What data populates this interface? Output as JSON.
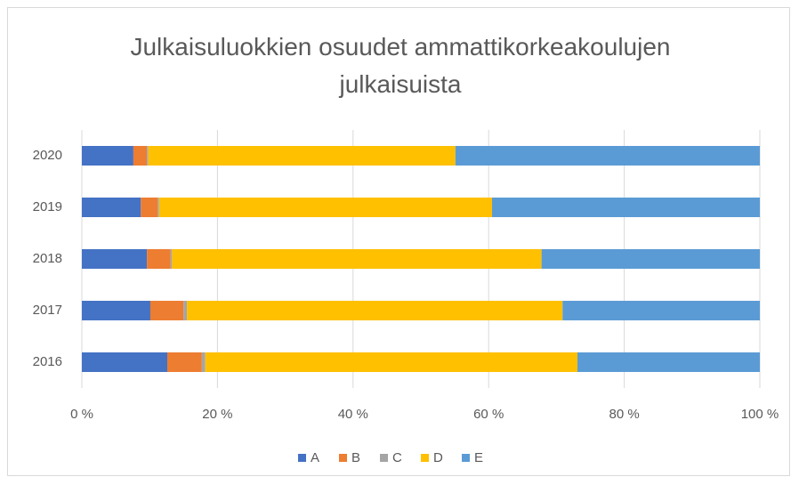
{
  "chart_data": {
    "type": "stacked_bar_horizontal",
    "title": "Julkaisuluokkien osuudet ammattikorkeakoulujen julkaisuista",
    "categories": [
      "2020",
      "2019",
      "2018",
      "2017",
      "2016"
    ],
    "series": [
      {
        "name": "A",
        "color": "#4472c4",
        "values": [
          7.6,
          8.7,
          9.6,
          10.1,
          12.6
        ]
      },
      {
        "name": "B",
        "color": "#ed7d31",
        "values": [
          2.0,
          2.5,
          3.5,
          4.9,
          5.1
        ]
      },
      {
        "name": "C",
        "color": "#a5a5a5",
        "values": [
          0.2,
          0.2,
          0.2,
          0.5,
          0.5
        ]
      },
      {
        "name": "D",
        "color": "#ffc000",
        "values": [
          45.3,
          49.1,
          54.5,
          55.4,
          54.9
        ]
      },
      {
        "name": "E",
        "color": "#5b9bd5",
        "values": [
          44.9,
          39.5,
          32.2,
          29.1,
          26.9
        ]
      }
    ],
    "xlim": [
      0,
      100
    ],
    "xticks": [
      {
        "value": 0,
        "label": "0 %"
      },
      {
        "value": 20,
        "label": "20 %"
      },
      {
        "value": 40,
        "label": "40 %"
      },
      {
        "value": 60,
        "label": "60 %"
      },
      {
        "value": 80,
        "label": "80 %"
      },
      {
        "value": 100,
        "label": "100 %"
      }
    ],
    "grid": true,
    "legend": "bottom"
  }
}
